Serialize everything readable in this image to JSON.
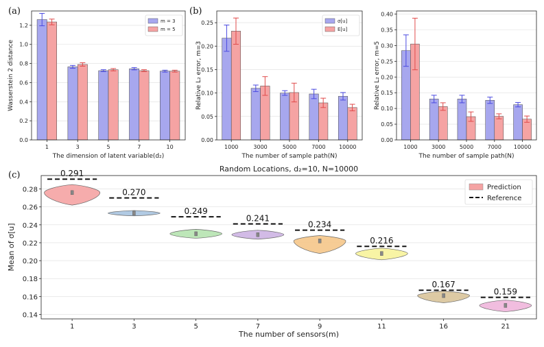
{
  "panel_labels": [
    "(a)",
    "(b)",
    "(c)"
  ],
  "colors": {
    "m3": "#a7a7ee",
    "m5": "#f5a3a3",
    "err3": "#4a4ae0",
    "err5": "#e04a4a",
    "violins": [
      "#f5a3a3",
      "#a9c4e0",
      "#b6e3b0",
      "#cdb4e3",
      "#f5c68a",
      "#f7f39b",
      "#d9c49a",
      "#f0b6dc"
    ]
  },
  "chart_data": [
    {
      "id": "a",
      "type": "bar",
      "title": "",
      "xlabel": "The dimension of latent variable(d₂)",
      "ylabel": "Wasserstein 2 distance",
      "ylim": [
        0,
        1.35
      ],
      "yticks": [
        0.0,
        0.2,
        0.4,
        0.6,
        0.8,
        1.0,
        1.2
      ],
      "ytick_labels": [
        "0.0",
        "0.2",
        "0.4",
        "0.6",
        "0.8",
        "1.0",
        "1.2"
      ],
      "categories": [
        "1",
        "3",
        "5",
        "7",
        "10"
      ],
      "series": [
        {
          "name": "m = 3",
          "values": [
            1.26,
            0.765,
            0.725,
            0.745,
            0.72
          ],
          "errors": [
            0.065,
            0.015,
            0.01,
            0.012,
            0.01
          ]
        },
        {
          "name": "m = 5",
          "values": [
            1.235,
            0.79,
            0.735,
            0.725,
            0.72
          ],
          "errors": [
            0.03,
            0.018,
            0.012,
            0.01,
            0.01
          ]
        }
      ],
      "legend": "top-right"
    },
    {
      "id": "b",
      "type": "bar",
      "title": "",
      "xlabel": "The number of sample path(N)",
      "ylabel": "Relative L₂ error, m=3",
      "ylim": [
        0,
        0.275
      ],
      "yticks": [
        0.0,
        0.05,
        0.1,
        0.15,
        0.2,
        0.25
      ],
      "ytick_labels": [
        "0.00",
        "0.05",
        "0.10",
        "0.15",
        "0.20",
        "0.25"
      ],
      "categories": [
        "1000",
        "3000",
        "5000",
        "7000",
        "10000"
      ],
      "series": [
        {
          "name": "σ[u]",
          "values": [
            0.217,
            0.11,
            0.1,
            0.098,
            0.093
          ],
          "errors": [
            0.028,
            0.007,
            0.005,
            0.01,
            0.008
          ]
        },
        {
          "name": "E[u]",
          "values": [
            0.232,
            0.115,
            0.101,
            0.079,
            0.069
          ],
          "errors": [
            0.028,
            0.02,
            0.02,
            0.01,
            0.007
          ]
        }
      ],
      "legend": "top-right"
    },
    {
      "id": "b2",
      "type": "bar",
      "title": "",
      "xlabel": "The number of sample path(N)",
      "ylabel": "Relative L₂ error, m=5",
      "ylim": [
        0,
        0.41
      ],
      "yticks": [
        0.0,
        0.05,
        0.1,
        0.15,
        0.2,
        0.25,
        0.3,
        0.35,
        0.4
      ],
      "ytick_labels": [
        "0.00",
        "0.05",
        "0.10",
        "0.15",
        "0.20",
        "0.25",
        "0.30",
        "0.35",
        "0.40"
      ],
      "categories": [
        "1000",
        "3000",
        "5000",
        "7000",
        "10000"
      ],
      "series": [
        {
          "name": "σ[u]",
          "values": [
            0.284,
            0.13,
            0.13,
            0.126,
            0.112
          ],
          "errors": [
            0.05,
            0.012,
            0.012,
            0.01,
            0.007
          ]
        },
        {
          "name": "E[u]",
          "values": [
            0.305,
            0.106,
            0.074,
            0.075,
            0.066
          ],
          "errors": [
            0.082,
            0.012,
            0.015,
            0.008,
            0.01
          ]
        }
      ],
      "legend": "none"
    },
    {
      "id": "c",
      "type": "violin",
      "title": "Random Locations, d₂=10, N=10000",
      "xlabel": "The number of sensors(m)",
      "ylabel": "Mean of σ[u]",
      "ylim": [
        0.135,
        0.295
      ],
      "yticks": [
        0.14,
        0.16,
        0.18,
        0.2,
        0.22,
        0.24,
        0.26,
        0.28
      ],
      "ytick_labels": [
        "0.14",
        "0.16",
        "0.18",
        "0.20",
        "0.22",
        "0.24",
        "0.26",
        "0.28"
      ],
      "categories": [
        "1",
        "3",
        "5",
        "7",
        "9",
        "11",
        "16",
        "21"
      ],
      "violins": [
        {
          "center": 0.276,
          "low": 0.262,
          "high": 0.285,
          "half_width": 0.45
        },
        {
          "center": 0.253,
          "low": 0.25,
          "high": 0.256,
          "half_width": 0.42
        },
        {
          "center": 0.23,
          "low": 0.225,
          "high": 0.235,
          "half_width": 0.42
        },
        {
          "center": 0.229,
          "low": 0.224,
          "high": 0.234,
          "half_width": 0.42
        },
        {
          "center": 0.222,
          "low": 0.208,
          "high": 0.228,
          "half_width": 0.42
        },
        {
          "center": 0.208,
          "low": 0.201,
          "high": 0.214,
          "half_width": 0.42
        },
        {
          "center": 0.161,
          "low": 0.153,
          "high": 0.166,
          "half_width": 0.42
        },
        {
          "center": 0.15,
          "low": 0.143,
          "high": 0.156,
          "half_width": 0.42
        }
      ],
      "reference": [
        0.291,
        0.27,
        0.249,
        0.241,
        0.234,
        0.216,
        0.167,
        0.159
      ],
      "reference_labels": [
        "0.291",
        "0.270",
        "0.249",
        "0.241",
        "0.234",
        "0.216",
        "0.167",
        "0.159"
      ],
      "legend_entries": [
        "Prediction",
        "Reference"
      ],
      "legend": "top-right"
    }
  ]
}
